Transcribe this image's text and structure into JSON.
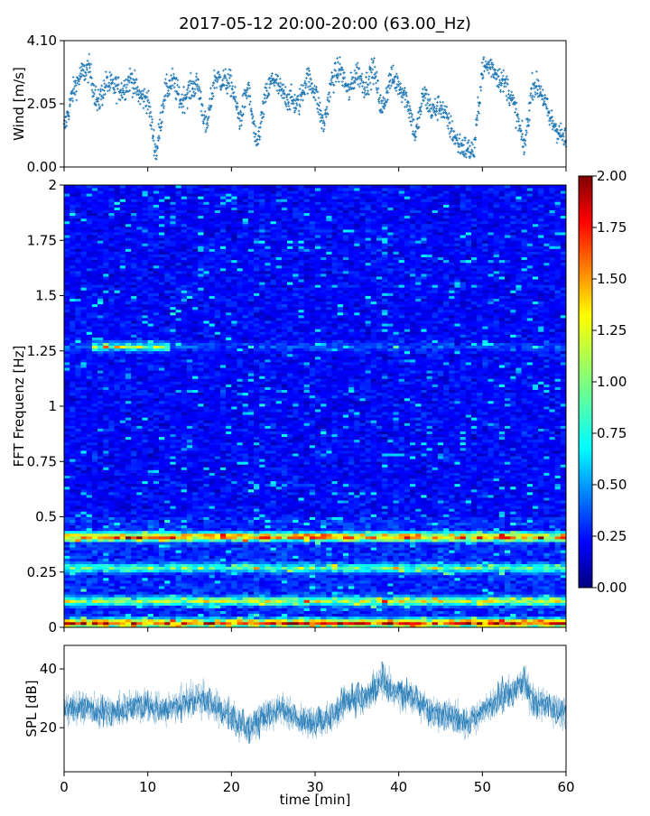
{
  "figure": {
    "title": "2017-05-12 20:00-20:00 (63.00_Hz)"
  },
  "chart_data": [
    {
      "id": "wind",
      "type": "scatter",
      "ylabel": "Wind [m/s]",
      "xlim": [
        0,
        60
      ],
      "ylim": [
        0,
        4.1
      ],
      "yticks": [
        0.0,
        2.05,
        4.1
      ],
      "ytick_labels": [
        "0.00",
        "2.05",
        "4.10"
      ],
      "grid": false,
      "color": "#1f77b4",
      "series": [
        {
          "x": [
            0,
            1,
            2,
            3,
            4,
            5,
            6,
            7,
            8,
            9,
            10,
            11,
            12,
            13,
            14,
            15,
            16,
            17,
            18,
            19,
            20,
            21,
            22,
            23,
            24,
            25,
            26,
            27,
            28,
            29,
            30,
            31,
            32,
            33,
            34,
            35,
            36,
            37,
            38,
            39,
            40,
            41,
            42,
            43,
            44,
            45,
            46,
            47,
            48,
            49,
            50,
            51,
            52,
            53,
            54,
            55,
            56,
            57,
            58,
            59,
            60
          ],
          "y": [
            1.2,
            2.4,
            3.0,
            3.2,
            2.0,
            2.7,
            2.6,
            2.5,
            2.9,
            2.3,
            2.2,
            0.4,
            2.4,
            2.8,
            2.1,
            2.5,
            2.7,
            1.2,
            2.9,
            2.8,
            2.7,
            1.5,
            2.6,
            0.6,
            2.2,
            2.9,
            2.4,
            2.2,
            2.0,
            2.9,
            2.5,
            1.3,
            2.8,
            3.2,
            2.4,
            3.1,
            2.6,
            3.2,
            1.8,
            2.9,
            2.7,
            2.2,
            1.0,
            2.4,
            1.8,
            2.0,
            1.4,
            0.8,
            0.6,
            0.5,
            3.2,
            3.3,
            2.9,
            2.6,
            1.8,
            0.6,
            2.7,
            2.5,
            1.6,
            1.2,
            0.8
          ]
        }
      ]
    },
    {
      "id": "spectrogram",
      "type": "heatmap",
      "ylabel": "FFT Frequenz [Hz]",
      "xlim": [
        0,
        60
      ],
      "ylim": [
        0,
        2
      ],
      "yticks": [
        0,
        0.25,
        0.5,
        0.75,
        1,
        1.25,
        1.5,
        1.75,
        2
      ],
      "ytick_labels": [
        "0",
        "0.25",
        "0.5",
        "0.75",
        "1",
        "1.25",
        "1.5",
        "1.75",
        "2"
      ],
      "colorbar": {
        "vmin": 0,
        "vmax": 2,
        "ticks": [
          0.0,
          0.25,
          0.5,
          0.75,
          1.0,
          1.25,
          1.5,
          1.75,
          2.0
        ],
        "tick_labels": [
          "0.00",
          "0.25",
          "0.50",
          "0.75",
          "1.00",
          "1.25",
          "1.50",
          "1.75",
          "2.00"
        ],
        "colormap": "jet"
      },
      "bands": [
        {
          "freq": 0.02,
          "level": 1.5
        },
        {
          "freq": 0.12,
          "level": 0.9
        },
        {
          "freq": 0.27,
          "level": 0.7
        },
        {
          "freq": 0.41,
          "level": 1.4
        },
        {
          "freq": 1.27,
          "level": 0.9
        }
      ],
      "background_level": 0.25
    },
    {
      "id": "spl",
      "type": "line",
      "xlabel": "time [min]",
      "ylabel": "SPL [dB]",
      "xlim": [
        0,
        60
      ],
      "ylim": [
        5,
        48
      ],
      "xticks": [
        0,
        10,
        20,
        30,
        40,
        50,
        60
      ],
      "xtick_labels": [
        "0",
        "10",
        "20",
        "30",
        "40",
        "50",
        "60"
      ],
      "yticks": [
        20,
        40
      ],
      "ytick_labels": [
        "20",
        "40"
      ],
      "grid": false,
      "color": "#1f77b4",
      "series": [
        {
          "x": [
            0,
            2,
            4,
            6,
            8,
            10,
            12,
            14,
            16,
            18,
            20,
            22,
            24,
            26,
            28,
            30,
            32,
            34,
            36,
            38,
            40,
            42,
            44,
            46,
            48,
            50,
            52,
            54,
            55,
            56,
            58,
            60
          ],
          "y": [
            26,
            27,
            26,
            25,
            27,
            28,
            26,
            28,
            30,
            27,
            24,
            19,
            24,
            27,
            22,
            22,
            24,
            30,
            30,
            36,
            32,
            30,
            25,
            24,
            22,
            25,
            30,
            33,
            36,
            29,
            27,
            25
          ]
        }
      ]
    }
  ]
}
